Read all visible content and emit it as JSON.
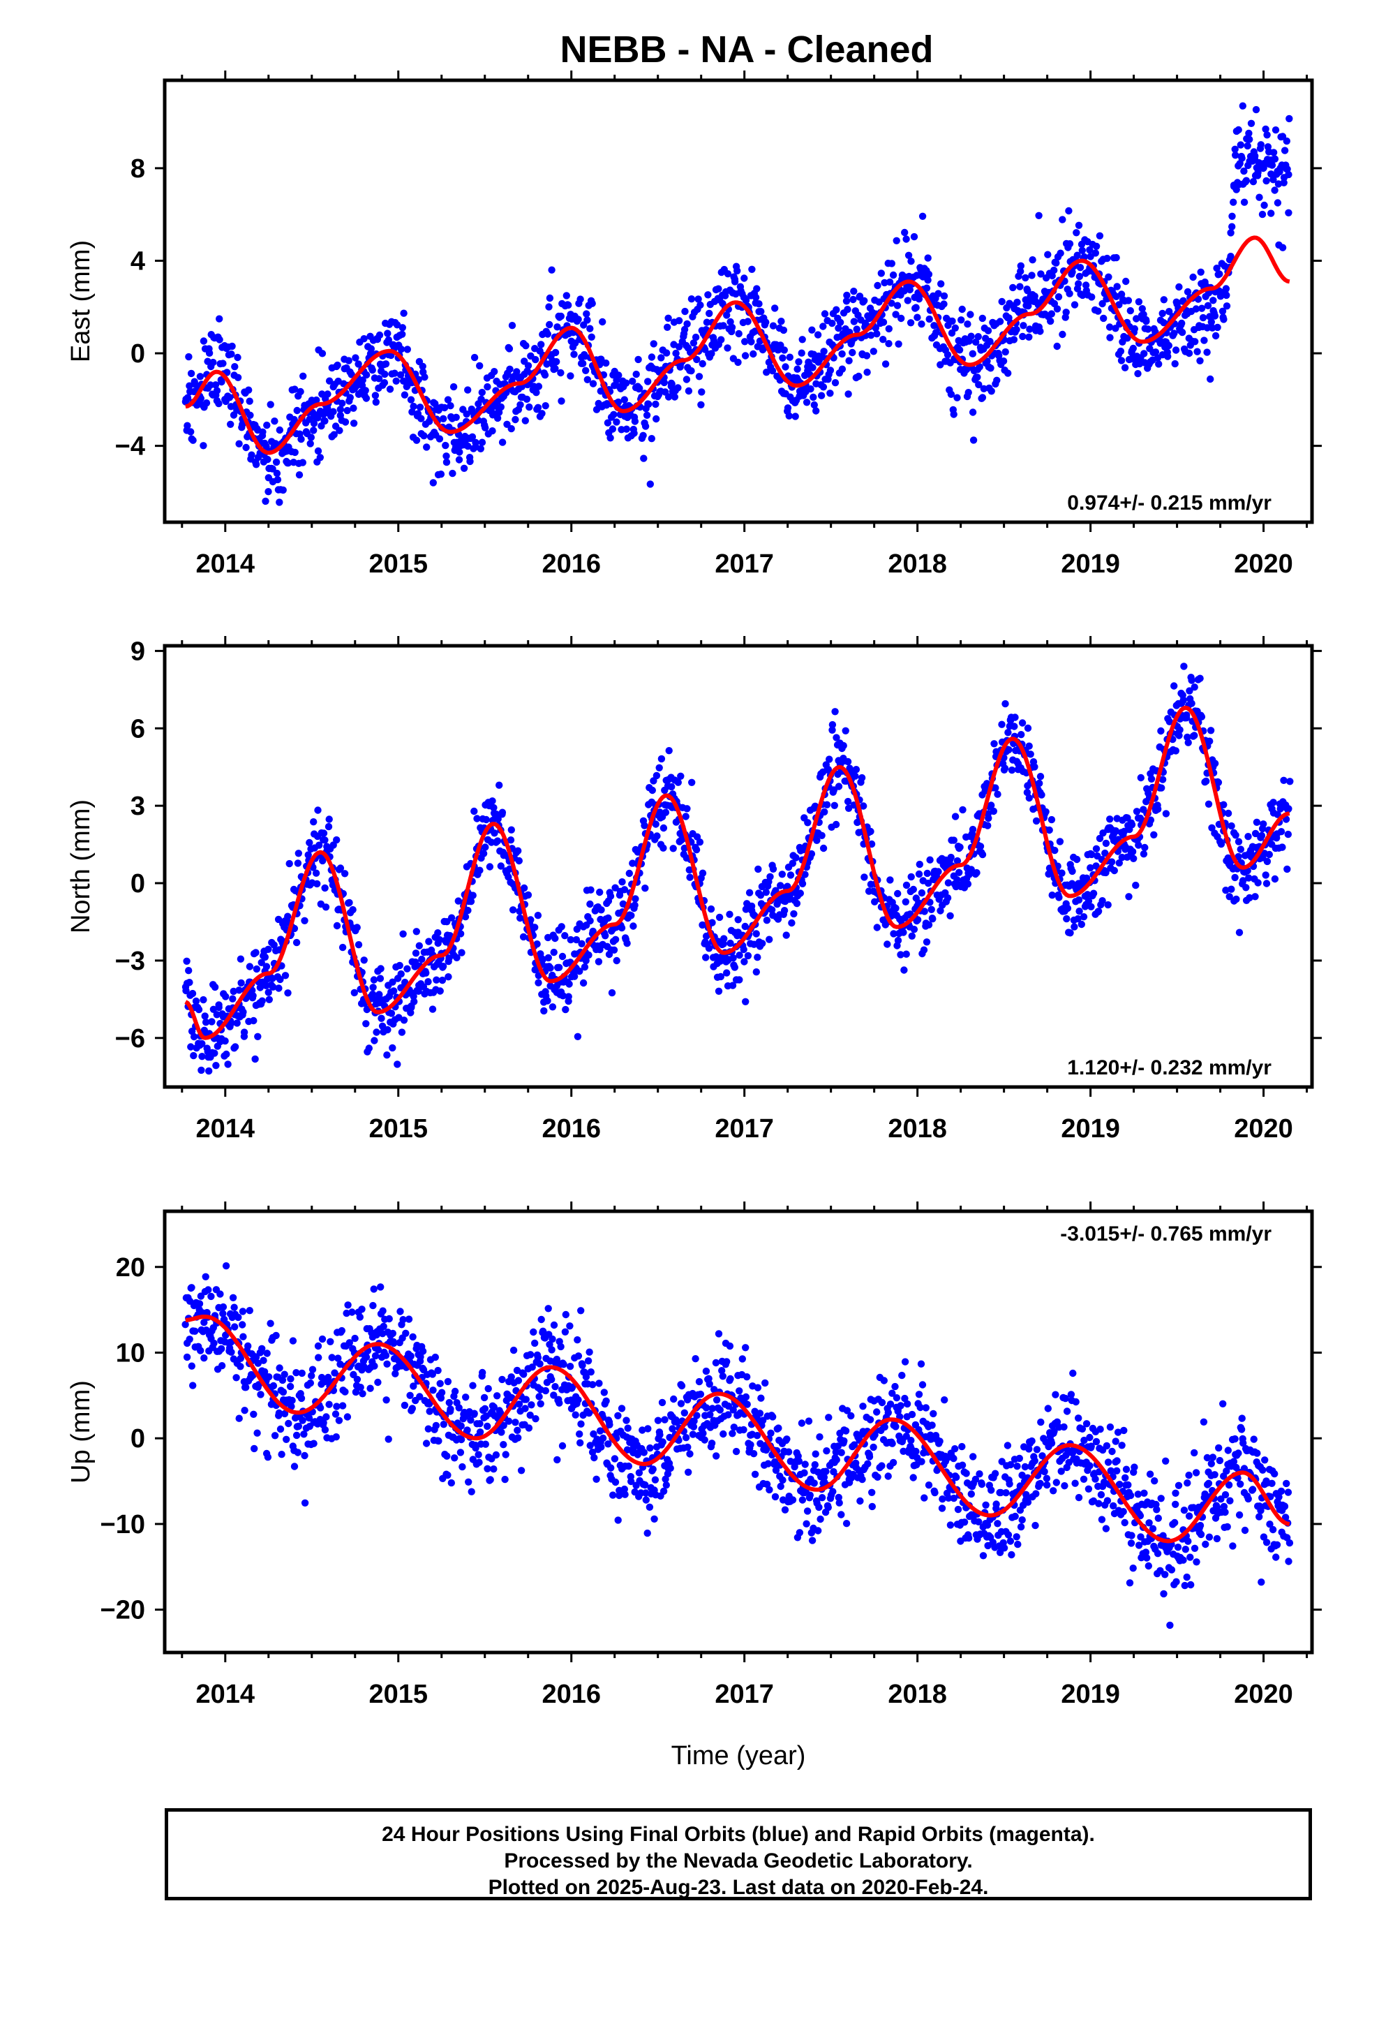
{
  "title": "NEBB  - NA - Cleaned",
  "colors": {
    "points": "#0000ff",
    "fit": "#ff0000",
    "frame": "#000000"
  },
  "caption": {
    "line1": "24 Hour Positions Using Final Orbits (blue) and Rapid Orbits (magenta).",
    "line2": "Processed by the Nevada Geodetic Laboratory.",
    "line3": "Plotted on 2025-Aug-23. Last data on 2020-Feb-24."
  },
  "chart_data": [
    {
      "type": "scatter",
      "panel": "east",
      "ylabel": "East (mm)",
      "xlabel": "",
      "xlim": [
        2013.65,
        2020.28
      ],
      "ylim": [
        -7.3,
        11.8
      ],
      "xticks": [
        2014,
        2015,
        2016,
        2017,
        2018,
        2019,
        2020
      ],
      "yticks": [
        -4,
        0,
        4,
        8
      ],
      "rate": "0.974+/- 0.215 mm/yr",
      "rate_position": "bottom-right",
      "fit": {
        "x": [
          2013.77,
          2013.95,
          2014.25,
          2014.55,
          2014.95,
          2015.3,
          2015.7,
          2016.0,
          2016.3,
          2016.65,
          2016.95,
          2017.3,
          2017.65,
          2017.95,
          2018.3,
          2018.65,
          2018.95,
          2019.3,
          2019.7,
          2019.95,
          2020.15
        ],
        "y": [
          -2.3,
          -0.8,
          -4.3,
          -2.2,
          0.1,
          -3.4,
          -1.3,
          1.1,
          -2.5,
          -0.3,
          2.2,
          -1.4,
          0.8,
          3.1,
          -0.5,
          1.7,
          4.0,
          0.5,
          2.8,
          5.0,
          3.1
        ]
      },
      "observed": {
        "x": [
          2013.77,
          2013.95,
          2014.25,
          2014.55,
          2014.95,
          2015.3,
          2015.7,
          2016.0,
          2016.3,
          2016.65,
          2016.95,
          2017.3,
          2017.65,
          2017.95,
          2018.3,
          2018.65,
          2018.95,
          2019.3,
          2019.7,
          2019.78,
          2019.85,
          2020.15
        ],
        "y": [
          -2.3,
          -0.8,
          -4.3,
          -2.2,
          0.1,
          -3.4,
          -1.3,
          1.1,
          -2.5,
          -0.3,
          2.2,
          -1.4,
          0.8,
          3.1,
          -0.5,
          1.7,
          4.0,
          0.5,
          2.0,
          2.5,
          8.6,
          8.0
        ]
      },
      "scatter_sd": 1.0
    },
    {
      "type": "scatter",
      "panel": "north",
      "ylabel": "North (mm)",
      "xlabel": "",
      "xlim": [
        2013.65,
        2020.28
      ],
      "ylim": [
        -7.9,
        9.2
      ],
      "xticks": [
        2014,
        2015,
        2016,
        2017,
        2018,
        2019,
        2020
      ],
      "yticks": [
        -6,
        -3,
        0,
        3,
        6,
        9
      ],
      "rate": "1.120+/- 0.232 mm/yr",
      "rate_position": "bottom-right",
      "fit": {
        "x": [
          2013.77,
          2013.88,
          2014.25,
          2014.55,
          2014.88,
          2015.25,
          2015.55,
          2015.88,
          2016.25,
          2016.55,
          2016.88,
          2017.25,
          2017.55,
          2017.88,
          2018.25,
          2018.55,
          2018.88,
          2019.25,
          2019.55,
          2019.88,
          2020.15
        ],
        "y": [
          -4.6,
          -6.0,
          -3.5,
          1.2,
          -5.0,
          -2.8,
          2.3,
          -3.8,
          -1.6,
          3.4,
          -2.7,
          -0.3,
          4.5,
          -1.7,
          0.7,
          5.6,
          -0.5,
          1.8,
          6.8,
          0.6,
          2.7
        ]
      },
      "scatter_sd": 0.85
    },
    {
      "type": "scatter",
      "panel": "up",
      "ylabel": "Up (mm)",
      "xlabel": "Time (year)",
      "xlim": [
        2013.65,
        2020.28
      ],
      "ylim": [
        -25,
        26.5
      ],
      "xticks": [
        2014,
        2015,
        2016,
        2017,
        2018,
        2019,
        2020
      ],
      "yticks": [
        -20,
        -10,
        0,
        10,
        20
      ],
      "rate": "-3.015+/- 0.765 mm/yr",
      "rate_position": "top-right",
      "fit": {
        "x": [
          2013.77,
          2013.88,
          2014.42,
          2014.88,
          2015.45,
          2015.88,
          2016.42,
          2016.85,
          2017.42,
          2017.85,
          2018.42,
          2018.88,
          2019.45,
          2019.88,
          2020.15
        ],
        "y": [
          13.8,
          14.2,
          3.0,
          11.0,
          0.0,
          8.3,
          -3.0,
          5.2,
          -6.0,
          2.2,
          -9.0,
          -0.8,
          -12.0,
          -4.0,
          -10.0
        ]
      },
      "scatter_sd": 3.2
    }
  ]
}
